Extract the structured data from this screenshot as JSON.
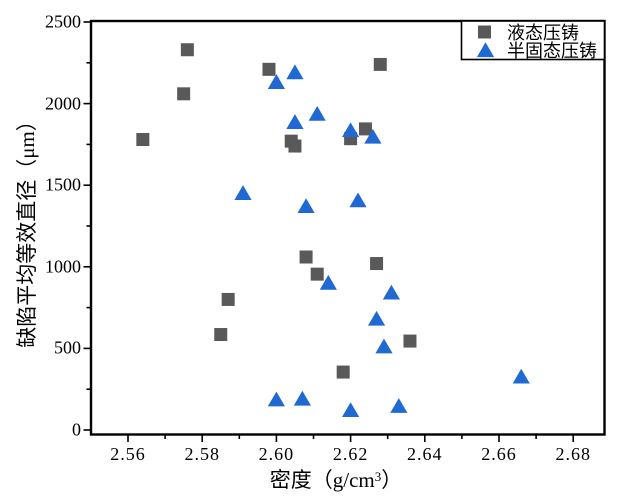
{
  "page": {
    "background": "#ffffff"
  },
  "chart_data": {
    "type": "scatter",
    "title": "",
    "xlabel": "密度（g/cm³）",
    "xlabel_main": "密度（g/cm",
    "xlabel_sup": "3",
    "xlabel_end": "）",
    "ylabel": "缺陷平均等效直径（μm）",
    "xlim": [
      2.55,
      2.689
    ],
    "ylim": [
      0,
      2500
    ],
    "x_ticks": [
      2.56,
      2.58,
      2.6,
      2.62,
      2.64,
      2.66,
      2.68
    ],
    "y_ticks": [
      0,
      500,
      1000,
      1500,
      2000,
      2500
    ],
    "x_minor_ticks": [
      2.57,
      2.59,
      2.61,
      2.63,
      2.65,
      2.67
    ],
    "y_minor_ticks": [
      250,
      750,
      1250,
      1750,
      2250
    ],
    "grid": false,
    "legend_position": "top-right-inside",
    "frame_color": "#000000",
    "series": [
      {
        "name": "液态压铸",
        "marker": "square",
        "color": "#595959",
        "points": [
          [
            2.576,
            2330
          ],
          [
            2.575,
            2060
          ],
          [
            2.564,
            1780
          ],
          [
            2.598,
            2210
          ],
          [
            2.628,
            2240
          ],
          [
            2.604,
            1770
          ],
          [
            2.605,
            1740
          ],
          [
            2.62,
            1785
          ],
          [
            2.624,
            1845
          ],
          [
            2.608,
            1060
          ],
          [
            2.611,
            955
          ],
          [
            2.627,
            1020
          ],
          [
            2.587,
            800
          ],
          [
            2.585,
            585
          ],
          [
            2.636,
            545
          ],
          [
            2.618,
            355
          ]
        ]
      },
      {
        "name": "半固态压铸",
        "marker": "triangle",
        "color": "#2169D2",
        "points": [
          [
            2.6,
            2130
          ],
          [
            2.605,
            2190
          ],
          [
            2.611,
            1935
          ],
          [
            2.605,
            1885
          ],
          [
            2.591,
            1450
          ],
          [
            2.608,
            1370
          ],
          [
            2.622,
            1405
          ],
          [
            2.62,
            1835
          ],
          [
            2.626,
            1795
          ],
          [
            2.614,
            900
          ],
          [
            2.631,
            840
          ],
          [
            2.627,
            680
          ],
          [
            2.629,
            510
          ],
          [
            2.6,
            185
          ],
          [
            2.607,
            190
          ],
          [
            2.62,
            120
          ],
          [
            2.633,
            145
          ],
          [
            2.666,
            325
          ]
        ]
      }
    ]
  }
}
